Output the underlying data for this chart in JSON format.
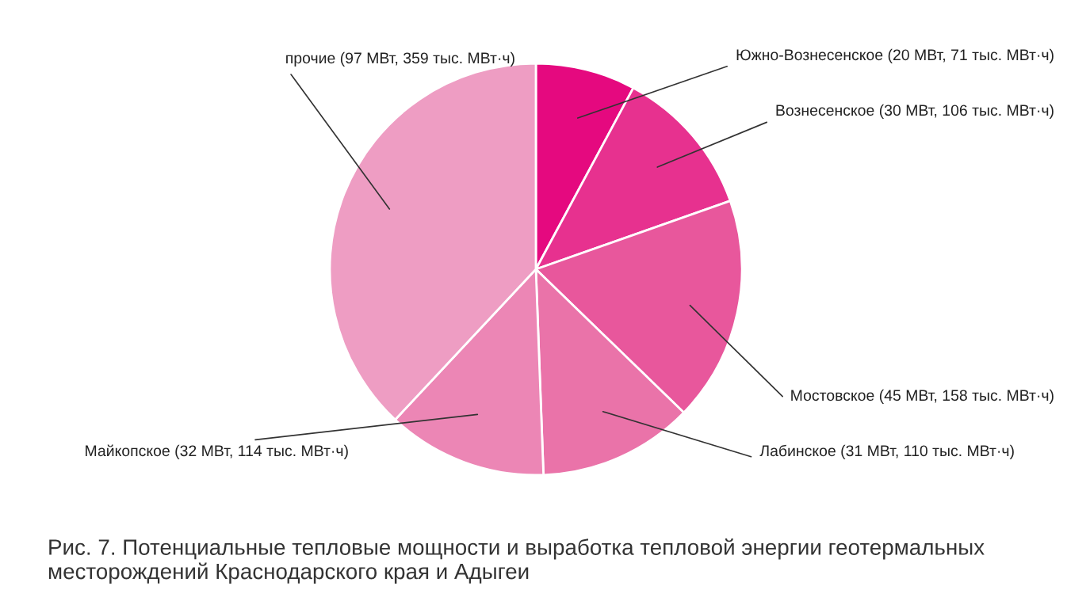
{
  "chart_data": {
    "type": "pie",
    "categories": [
      "Южно-Вознесенское (20 МВт, 71 тыс. МВт·ч)",
      "Вознесенское (30 МВт, 106 тыс. МВт·ч)",
      "Мостовское (45 МВт, 158 тыс. МВт·ч)",
      "Лабинское (31 МВт, 110 тыс. МВт·ч)",
      "Майкопское (32 МВт, 114 тыс. МВт·ч)",
      "прочие (97 МВт, 359 тыс. МВт·ч)"
    ],
    "values": [
      20,
      30,
      45,
      31,
      32,
      97
    ],
    "colors": [
      "#e5097f",
      "#e7318f",
      "#e8579c",
      "#ea73a9",
      "#ec86b5",
      "#ee9dc3"
    ],
    "legend": false,
    "annotations": [
      "Рис. 7. Потенциальные тепловые мощности и выработка тепловой энергии геотермальных месторождений Краснодарского края и Адыгеи"
    ]
  }
}
